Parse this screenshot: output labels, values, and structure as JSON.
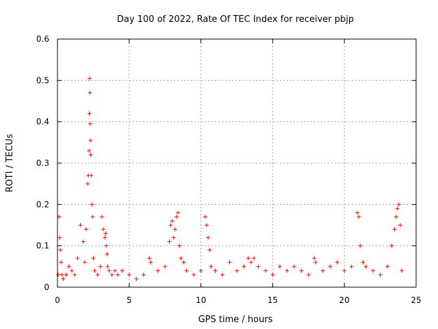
{
  "chart_data": {
    "type": "scatter",
    "title": "Day 100 of 2022, Rate Of TEC Index for receiver pbjp",
    "xlabel": "GPS time / hours",
    "ylabel": "ROTI / TECUs",
    "xlim": [
      0,
      25
    ],
    "ylim": [
      0,
      0.6
    ],
    "xticks": [
      0,
      5,
      10,
      15,
      20,
      25
    ],
    "yticks": [
      0,
      0.1,
      0.2,
      0.3,
      0.4,
      0.5,
      0.6
    ],
    "xtick_labels": [
      "0",
      "5",
      "10",
      "15",
      "20",
      "25"
    ],
    "ytick_labels": [
      "0",
      "0.1",
      "0.2",
      "0.3",
      "0.4",
      "0.5",
      "0.6"
    ],
    "grid": true,
    "marker": "+",
    "color": "#ff0000",
    "series": [
      {
        "x": [
          0.05,
          0.1,
          0.15,
          0.2,
          0.25,
          0.3,
          0.4,
          0.6,
          0.8,
          1.0,
          1.2,
          1.4,
          1.6,
          1.8,
          1.9,
          2.0,
          2.1,
          2.15,
          2.2,
          2.22,
          2.24,
          2.26,
          2.28,
          2.3,
          2.32,
          2.35,
          2.4,
          2.45,
          2.5,
          2.6,
          2.8,
          3.0,
          3.1,
          3.2,
          3.3,
          3.35,
          3.4,
          3.45,
          3.5,
          3.6,
          3.8,
          4.0,
          4.2,
          4.5,
          5.0,
          5.5,
          6.0,
          6.4,
          6.5,
          7.0,
          7.5,
          7.8,
          7.9,
          8.0,
          8.1,
          8.2,
          8.3,
          8.4,
          8.5,
          8.6,
          8.8,
          9.0,
          9.5,
          10.0,
          10.3,
          10.4,
          10.5,
          10.6,
          10.7,
          11.0,
          11.5,
          12.0,
          12.5,
          13.0,
          13.3,
          13.5,
          13.7,
          14.0,
          14.5,
          15.0,
          15.5,
          16.0,
          16.5,
          17.0,
          17.5,
          17.9,
          18.0,
          18.5,
          19.0,
          19.5,
          20.0,
          20.5,
          20.9,
          21.0,
          21.1,
          21.3,
          21.5,
          22.0,
          22.5,
          23.0,
          23.3,
          23.5,
          23.6,
          23.7,
          23.8,
          23.9,
          24.0
        ],
        "y": [
          0.03,
          0.17,
          0.12,
          0.09,
          0.06,
          0.03,
          0.02,
          0.03,
          0.05,
          0.04,
          0.03,
          0.07,
          0.15,
          0.11,
          0.06,
          0.14,
          0.25,
          0.27,
          0.33,
          0.42,
          0.505,
          0.47,
          0.395,
          0.355,
          0.32,
          0.27,
          0.2,
          0.17,
          0.07,
          0.04,
          0.03,
          0.05,
          0.17,
          0.14,
          0.12,
          0.13,
          0.1,
          0.08,
          0.05,
          0.04,
          0.03,
          0.04,
          0.03,
          0.04,
          0.03,
          0.02,
          0.03,
          0.07,
          0.06,
          0.04,
          0.05,
          0.11,
          0.15,
          0.16,
          0.12,
          0.14,
          0.17,
          0.18,
          0.1,
          0.07,
          0.06,
          0.04,
          0.03,
          0.04,
          0.17,
          0.15,
          0.12,
          0.09,
          0.05,
          0.04,
          0.03,
          0.06,
          0.04,
          0.05,
          0.07,
          0.06,
          0.07,
          0.05,
          0.04,
          0.03,
          0.05,
          0.04,
          0.05,
          0.04,
          0.03,
          0.07,
          0.06,
          0.04,
          0.05,
          0.06,
          0.04,
          0.05,
          0.18,
          0.17,
          0.1,
          0.06,
          0.05,
          0.04,
          0.03,
          0.05,
          0.1,
          0.14,
          0.17,
          0.19,
          0.2,
          0.15,
          0.04
        ]
      }
    ]
  }
}
